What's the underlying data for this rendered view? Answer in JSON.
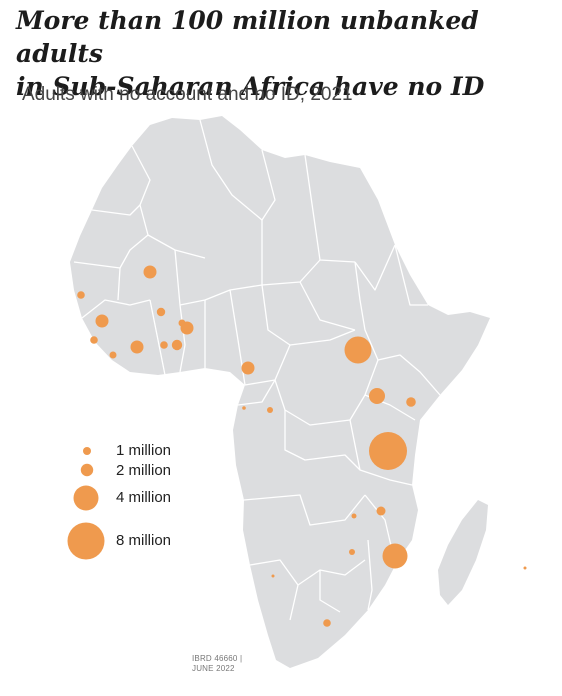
{
  "title_line1": "More than 100 million unbanked adults",
  "title_line2": "in Sub-Saharan Africa have no ID",
  "subtitle": "Adults with no account and no ID, 2021",
  "colors": {
    "land": "#dcdddf",
    "border": "#ffffff",
    "bubble": "#ef9a4e"
  },
  "legend": [
    {
      "label": "1 million",
      "millions": 1
    },
    {
      "label": "2 million",
      "millions": 2
    },
    {
      "label": "4 million",
      "millions": 4
    },
    {
      "label": "8 million",
      "millions": 8
    }
  ],
  "footnote_line1": "IBRD 46660 |",
  "footnote_line2": "JUNE 2022"
}
